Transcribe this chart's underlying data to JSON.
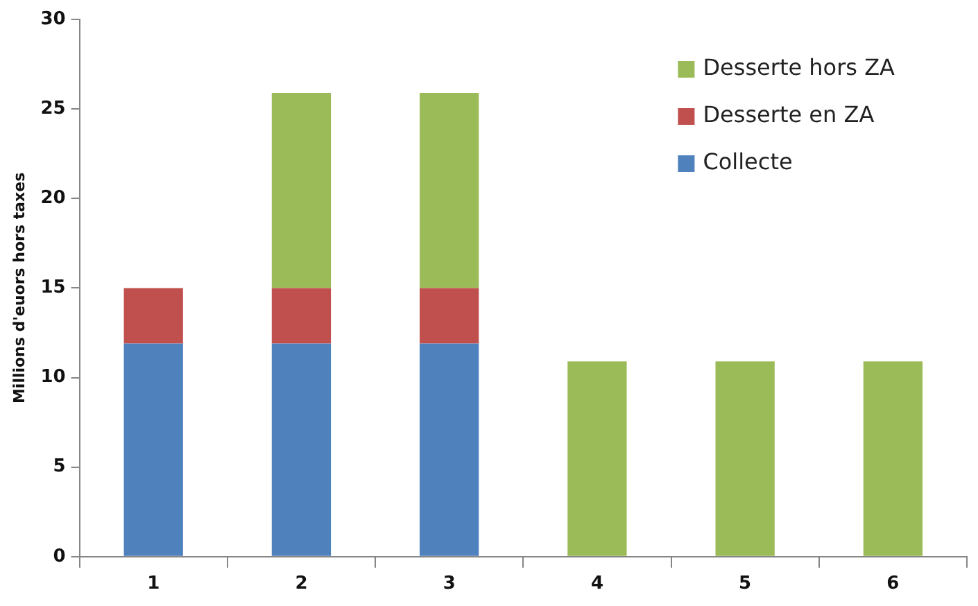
{
  "chart_data": {
    "type": "bar",
    "stacked": true,
    "ylabel": "Millions d'euors hors taxes",
    "categories": [
      "1",
      "2",
      "3",
      "4",
      "5",
      "6"
    ],
    "series": [
      {
        "name": "Collecte",
        "color": "#4f81bd",
        "values": [
          11.9,
          11.9,
          11.9,
          null,
          null,
          null
        ]
      },
      {
        "name": "Desserte en ZA",
        "color": "#c0504d",
        "values": [
          3.1,
          3.1,
          3.1,
          null,
          null,
          null
        ]
      },
      {
        "name": "Desserte hors ZA",
        "color": "#9bbb59",
        "values": [
          null,
          10.9,
          10.9,
          10.9,
          10.9,
          10.9
        ]
      }
    ],
    "ylim": [
      0,
      30
    ],
    "yticks": [
      0,
      5,
      10,
      15,
      20,
      25,
      30
    ],
    "grid": false,
    "legend": "top right"
  }
}
